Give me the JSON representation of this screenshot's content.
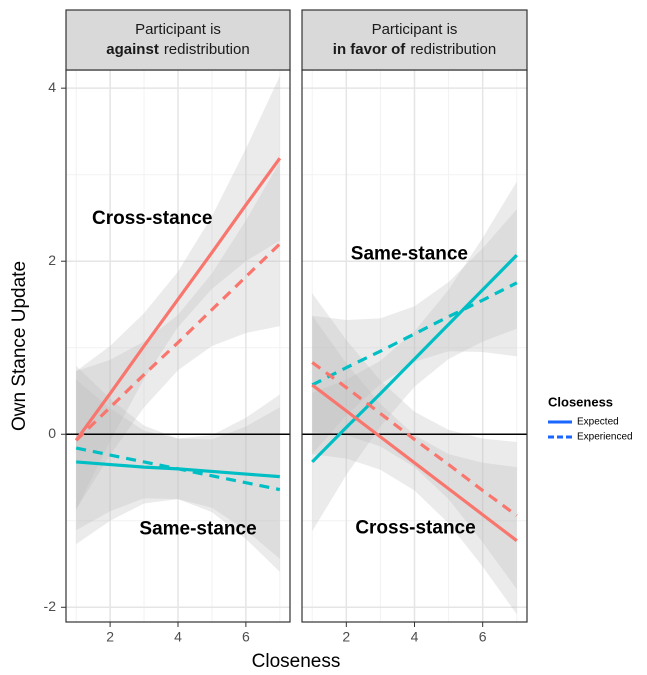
{
  "chart_data": {
    "type": "line",
    "xlabel": "Closeness",
    "ylabel": "Own Stance Update",
    "xlim": [
      0.7,
      7.3
    ],
    "ylim": [
      -2.17,
      4.21
    ],
    "xticks": [
      2,
      4,
      6
    ],
    "yticks": [
      -2,
      0,
      2,
      4
    ],
    "minor_xticks": [
      1,
      3,
      5,
      7
    ],
    "minor_yticks": [
      -1,
      1,
      3
    ],
    "grid": true,
    "reference_line": 0,
    "band_color": "#bdbdbd",
    "legend": {
      "title": "Closeness",
      "color": "#1a66ff",
      "entries": [
        {
          "name": "Expected",
          "dashed": false
        },
        {
          "name": "Experienced",
          "dashed": true
        }
      ]
    },
    "panels": [
      {
        "title_line1": "Participant is",
        "title_bold": "against",
        "title_rest": "redistribution",
        "series": [
          {
            "color": "#F8766D",
            "dashed": false,
            "x": [
              1,
              2,
              3,
              4,
              5,
              6,
              7
            ],
            "values": [
              -0.07,
              0.47,
              1.02,
              1.56,
              2.1,
              2.65,
              3.19
            ],
            "lower": [
              -0.87,
              -0.08,
              0.64,
              1.24,
              1.68,
              2.0,
              2.24
            ],
            "upper": [
              0.73,
              1.02,
              1.4,
              1.88,
              2.52,
              3.3,
              4.14
            ]
          },
          {
            "color": "#F8766D",
            "dashed": true,
            "x": [
              1,
              2,
              3,
              4,
              5,
              6,
              7
            ],
            "values": [
              -0.07,
              0.31,
              0.69,
              1.06,
              1.44,
              1.82,
              2.2
            ],
            "lower": [
              -0.87,
              -0.24,
              0.31,
              0.74,
              1.02,
              1.17,
              1.25
            ],
            "upper": [
              0.73,
              0.86,
              1.07,
              1.38,
              1.86,
              2.47,
              3.15
            ]
          },
          {
            "color": "#00BFC4",
            "dashed": false,
            "x": [
              1,
              2,
              3,
              4,
              5,
              6,
              7
            ],
            "values": [
              -0.32,
              -0.35,
              -0.38,
              -0.4,
              -0.43,
              -0.46,
              -0.49
            ],
            "lower": [
              -1.27,
              -1.0,
              -0.8,
              -0.75,
              -0.85,
              -1.11,
              -1.44
            ],
            "upper": [
              0.63,
              0.3,
              0.04,
              -0.05,
              -0.01,
              0.19,
              0.46
            ]
          },
          {
            "color": "#00BFC4",
            "dashed": true,
            "x": [
              1,
              2,
              3,
              4,
              5,
              6,
              7
            ],
            "values": [
              -0.16,
              -0.24,
              -0.32,
              -0.4,
              -0.48,
              -0.56,
              -0.64
            ],
            "lower": [
              -1.11,
              -0.89,
              -0.74,
              -0.75,
              -0.9,
              -1.21,
              -1.59
            ],
            "upper": [
              0.79,
              0.41,
              0.1,
              -0.05,
              -0.06,
              0.09,
              0.31
            ]
          }
        ],
        "annotations": [
          {
            "text": "Cross-stance",
            "x": 3.24,
            "y": 2.49
          },
          {
            "text": "Same-stance",
            "x": 4.59,
            "y": -1.1
          }
        ]
      },
      {
        "title_line1": "Participant is",
        "title_bold": "in favor of",
        "title_rest": "redistribution",
        "series": [
          {
            "color": "#00BFC4",
            "dashed": false,
            "x": [
              1,
              2,
              3,
              4,
              5,
              6,
              7
            ],
            "values": [
              -0.32,
              0.08,
              0.47,
              0.87,
              1.27,
              1.67,
              2.07
            ],
            "lower": [
              -1.12,
              -0.47,
              0.09,
              0.55,
              0.87,
              1.07,
              1.22
            ],
            "upper": [
              0.48,
              0.63,
              0.85,
              1.19,
              1.67,
              2.27,
              2.92
            ]
          },
          {
            "color": "#00BFC4",
            "dashed": true,
            "x": [
              1,
              2,
              3,
              4,
              5,
              6,
              7
            ],
            "values": [
              0.57,
              0.77,
              0.96,
              1.16,
              1.36,
              1.55,
              1.75
            ],
            "lower": [
              -0.23,
              0.22,
              0.58,
              0.84,
              0.96,
              0.95,
              0.9
            ],
            "upper": [
              1.37,
              1.32,
              1.34,
              1.48,
              1.76,
              2.15,
              2.6
            ]
          },
          {
            "color": "#F8766D",
            "dashed": false,
            "x": [
              1,
              2,
              3,
              4,
              5,
              6,
              7
            ],
            "values": [
              0.57,
              0.27,
              -0.03,
              -0.33,
              -0.63,
              -0.93,
              -1.23
            ],
            "lower": [
              -0.23,
              -0.28,
              -0.41,
              -0.65,
              -1.03,
              -1.53,
              -2.08
            ],
            "upper": [
              1.37,
              0.82,
              0.35,
              -0.01,
              -0.23,
              -0.33,
              -0.38
            ]
          },
          {
            "color": "#F8766D",
            "dashed": true,
            "x": [
              1,
              2,
              3,
              4,
              5,
              6,
              7
            ],
            "values": [
              0.83,
              0.54,
              0.24,
              -0.06,
              -0.35,
              -0.65,
              -0.94
            ],
            "lower": [
              0.03,
              -0.01,
              -0.14,
              -0.38,
              -0.75,
              -1.25,
              -1.79
            ],
            "upper": [
              1.63,
              1.09,
              0.62,
              0.26,
              0.05,
              -0.05,
              -0.09
            ]
          }
        ],
        "annotations": [
          {
            "text": "Same-stance",
            "x": 3.85,
            "y": 2.08
          },
          {
            "text": "Cross-stance",
            "x": 4.03,
            "y": -1.09
          }
        ]
      }
    ]
  }
}
